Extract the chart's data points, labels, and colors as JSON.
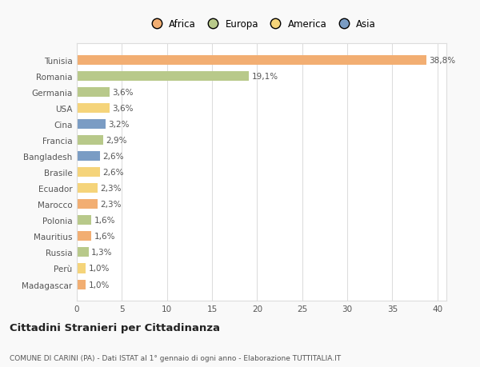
{
  "countries": [
    "Tunisia",
    "Romania",
    "Germania",
    "USA",
    "Cina",
    "Francia",
    "Bangladesh",
    "Brasile",
    "Ecuador",
    "Marocco",
    "Polonia",
    "Mauritius",
    "Russia",
    "Perù",
    "Madagascar"
  ],
  "values": [
    38.8,
    19.1,
    3.6,
    3.6,
    3.2,
    2.9,
    2.6,
    2.6,
    2.3,
    2.3,
    1.6,
    1.6,
    1.3,
    1.0,
    1.0
  ],
  "labels": [
    "38,8%",
    "19,1%",
    "3,6%",
    "3,6%",
    "3,2%",
    "2,9%",
    "2,6%",
    "2,6%",
    "2,3%",
    "2,3%",
    "1,6%",
    "1,6%",
    "1,3%",
    "1,0%",
    "1,0%"
  ],
  "continents": [
    "Africa",
    "Europa",
    "Europa",
    "America",
    "Asia",
    "Europa",
    "Asia",
    "America",
    "America",
    "Africa",
    "Europa",
    "Africa",
    "Europa",
    "America",
    "Africa"
  ],
  "continent_colors": {
    "Africa": "#F2AE72",
    "Europa": "#B8C98A",
    "America": "#F5D47A",
    "Asia": "#7A9CC4"
  },
  "legend_items": [
    "Africa",
    "Europa",
    "America",
    "Asia"
  ],
  "legend_colors": [
    "#F2AE72",
    "#B8C98A",
    "#F5D47A",
    "#7A9CC4"
  ],
  "xlim": [
    0,
    41
  ],
  "xticks": [
    0,
    5,
    10,
    15,
    20,
    25,
    30,
    35,
    40
  ],
  "title": "Cittadini Stranieri per Cittadinanza",
  "subtitle": "COMUNE DI CARINI (PA) - Dati ISTAT al 1° gennaio di ogni anno - Elaborazione TUTTITALIA.IT",
  "background_color": "#f9f9f9",
  "bar_background": "#ffffff",
  "grid_color": "#dddddd",
  "label_fontsize": 7.5,
  "tick_fontsize": 7.5,
  "legend_fontsize": 8.5
}
